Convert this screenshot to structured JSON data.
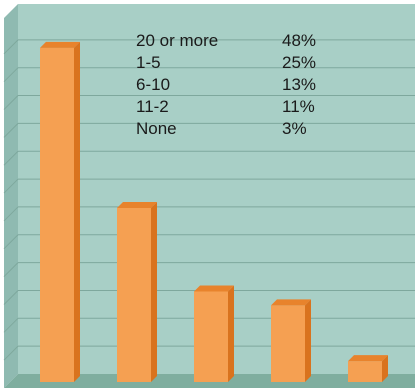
{
  "chart_data": {
    "type": "bar",
    "categories": [
      "20 or more",
      "1-5",
      "6-10",
      "11-2",
      "None"
    ],
    "values": [
      48,
      25,
      13,
      11,
      3
    ],
    "value_labels": [
      "48%",
      "25%",
      "13%",
      "11%",
      "3%"
    ],
    "ylim": [
      0,
      52
    ],
    "grid": true,
    "legend": "top",
    "colors": {
      "bar_front": "#f5a052",
      "bar_side": "#d9731e",
      "bar_top": "#e8832c",
      "plot_back": "#a8cfc6",
      "plot_side": "#8fbab1",
      "plot_floor": "#7fae9f",
      "gridline": "#7ea89d"
    }
  },
  "legend": [
    {
      "label": "20 or more",
      "value": "48%"
    },
    {
      "label": "1-5",
      "value": "25%"
    },
    {
      "label": "6-10",
      "value": "13%"
    },
    {
      "label": "11-2",
      "value": "11%"
    },
    {
      "label": "None",
      "value": "3%"
    }
  ]
}
